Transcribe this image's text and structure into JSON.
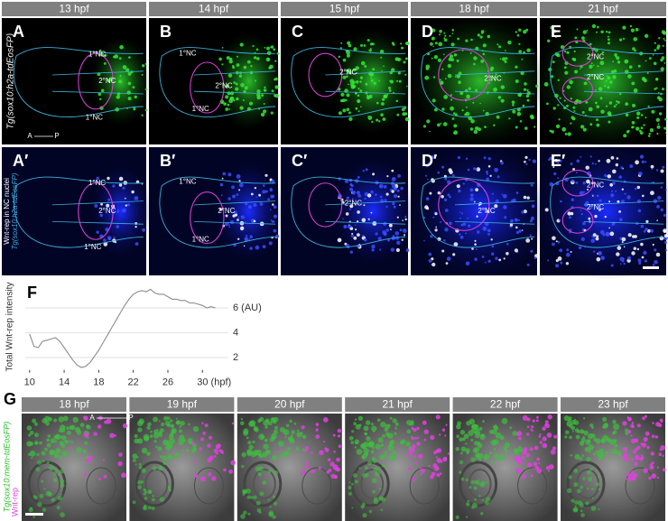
{
  "panels": {
    "top_headers": [
      "13 hpf",
      "14 hpf",
      "15 hpf",
      "18 hpf",
      "21 hpf"
    ],
    "row1": {
      "side_label": "Tg(sox10:h2a-tdEosFP)",
      "letters": [
        "A",
        "B",
        "C",
        "D",
        "E"
      ],
      "labels": [
        [
          "1°NC",
          "2°NC",
          "1°NC"
        ],
        [
          "1°NC",
          "2°NC",
          "1°NC"
        ],
        [
          "2°NC"
        ],
        [
          "2°NC"
        ],
        [
          "2°NC",
          "2°NC"
        ]
      ],
      "axis": {
        "anterior": "A",
        "posterior": "P"
      }
    },
    "row2": {
      "side_label": "Wnt-rep in NC nuclei",
      "side_label_2": "Tg(sox10:h2a-tdEosFP)",
      "letters": [
        "A′",
        "B′",
        "C′",
        "D′",
        "E′"
      ],
      "labels": [
        [
          "1°NC",
          "2°NC",
          "1°NC"
        ],
        [
          "1°NC",
          "2°NC",
          "1°NC"
        ],
        [
          "2°NC"
        ],
        [
          "2°NC"
        ],
        [
          "2°NC",
          "2°NC"
        ]
      ]
    },
    "f_letter": "F",
    "g": {
      "letter": "G",
      "headers": [
        "18 hpf",
        "19 hpf",
        "20 hpf",
        "21 hpf",
        "22 hpf",
        "23 hpf"
      ],
      "side_label": "Tg(sox10:mem-tdEosFP)",
      "side_label_2": "Wnt-rep",
      "axis": {
        "anterior": "A",
        "posterior": "P"
      }
    }
  },
  "chart_data": {
    "type": "line",
    "y_label": "Total Wnt-rep intensity",
    "color": "#8c8c8c",
    "grid": true,
    "x": [
      10,
      10.5,
      11,
      11.5,
      12,
      12.5,
      13,
      13.5,
      14,
      14.5,
      15,
      15.5,
      16,
      16.5,
      17,
      17.5,
      18,
      18.5,
      19,
      19.5,
      20,
      20.5,
      21,
      21.5,
      22,
      22.5,
      23,
      23.5,
      24,
      24.5,
      25,
      25.5,
      26,
      26.5,
      27,
      27.5,
      28,
      28.5,
      29,
      29.5,
      30,
      30.5,
      31,
      31.5
    ],
    "values": [
      3.9,
      2.9,
      2.8,
      3.3,
      3.4,
      3.5,
      3.6,
      3.3,
      2.8,
      2.3,
      1.8,
      1.4,
      1.2,
      1.3,
      1.6,
      2.1,
      2.6,
      3.2,
      3.8,
      4.4,
      5.0,
      5.6,
      6.2,
      6.7,
      7.1,
      7.3,
      7.4,
      7.3,
      7.5,
      7.2,
      7.1,
      7.1,
      6.9,
      6.7,
      6.7,
      6.6,
      6.6,
      6.4,
      6.4,
      6.3,
      6.2,
      6.0,
      6.1,
      6.0
    ],
    "xlim": [
      9.5,
      33
    ],
    "ylim": [
      1,
      8
    ],
    "xticks": [
      10,
      14,
      18,
      22,
      26,
      {
        "value": 30,
        "label": "30 (hpf)"
      }
    ],
    "yticks": [
      2,
      4,
      {
        "value": 6,
        "label": "6 (AU)"
      }
    ]
  }
}
